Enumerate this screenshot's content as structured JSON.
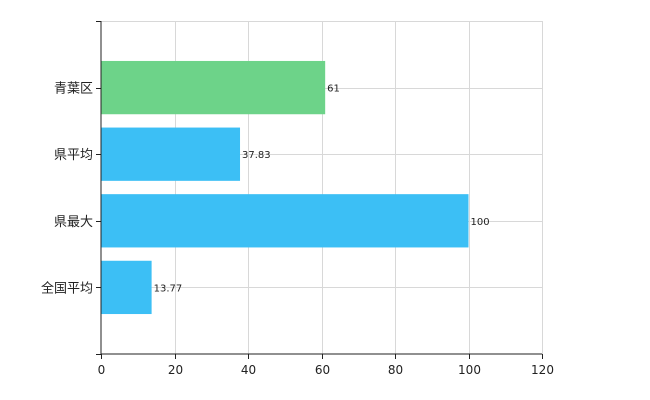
{
  "chart_data": {
    "type": "bar",
    "orientation": "horizontal",
    "categories": [
      "青葉区",
      "県平均",
      "県最大",
      "全国平均"
    ],
    "values": [
      61,
      37.83,
      100,
      13.77
    ],
    "data_labels": [
      "61",
      "37.83",
      "100",
      "13.77"
    ],
    "bar_colors": [
      "#6dd389",
      "#3cbff5",
      "#3cbff5",
      "#3cbff5"
    ],
    "xlim": [
      0,
      120
    ],
    "xticks": [
      0,
      20,
      40,
      60,
      80,
      100,
      120
    ],
    "grid": true,
    "legend": "none"
  }
}
